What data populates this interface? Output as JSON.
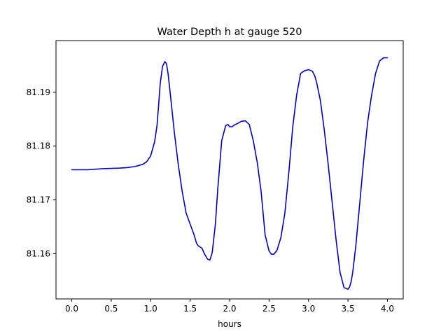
{
  "chart_data": {
    "type": "line",
    "title": "Water Depth h at gauge 520",
    "xlabel": "hours",
    "ylabel": "",
    "xlim": [
      -0.2,
      4.2
    ],
    "ylim": [
      81.1516,
      81.1996
    ],
    "xticks": [
      0.0,
      0.5,
      1.0,
      1.5,
      2.0,
      2.5,
      3.0,
      3.5,
      4.0
    ],
    "xtick_labels": [
      "0.0",
      "0.5",
      "1.0",
      "1.5",
      "2.0",
      "2.5",
      "3.0",
      "3.5",
      "4.0"
    ],
    "yticks": [
      81.16,
      81.17,
      81.18,
      81.19
    ],
    "ytick_labels": [
      "81.16",
      "81.17",
      "81.18",
      "81.19"
    ],
    "grid": false,
    "series": [
      {
        "color": "#0000cc",
        "x": [
          0.0,
          0.2,
          0.4,
          0.6,
          0.7,
          0.8,
          0.9,
          0.95,
          1.0,
          1.05,
          1.08,
          1.1,
          1.12,
          1.15,
          1.18,
          1.2,
          1.22,
          1.25,
          1.3,
          1.35,
          1.4,
          1.45,
          1.5,
          1.55,
          1.58,
          1.6,
          1.65,
          1.68,
          1.72,
          1.75,
          1.78,
          1.82,
          1.85,
          1.9,
          1.95,
          1.98,
          2.0,
          2.03,
          2.06,
          2.1,
          2.15,
          2.2,
          2.25,
          2.3,
          2.35,
          2.4,
          2.45,
          2.5,
          2.53,
          2.56,
          2.6,
          2.65,
          2.7,
          2.75,
          2.8,
          2.85,
          2.9,
          2.95,
          3.0,
          3.05,
          3.08,
          3.1,
          3.15,
          3.2,
          3.25,
          3.3,
          3.35,
          3.4,
          3.45,
          3.5,
          3.52,
          3.54,
          3.56,
          3.6,
          3.65,
          3.7,
          3.75,
          3.8,
          3.85,
          3.9,
          3.95,
          3.98,
          4.0
        ],
        "y": [
          81.1756,
          81.1756,
          81.1758,
          81.1759,
          81.176,
          81.1762,
          81.1766,
          81.1771,
          81.1782,
          81.1808,
          81.1838,
          81.1875,
          81.1915,
          81.1948,
          81.1957,
          81.1953,
          81.1935,
          81.1895,
          81.1825,
          81.1765,
          81.1715,
          81.1675,
          81.1655,
          81.1635,
          81.162,
          81.1615,
          81.161,
          81.16,
          81.159,
          81.1588,
          81.1602,
          81.1655,
          81.172,
          81.181,
          81.1838,
          81.184,
          81.1836,
          81.1836,
          81.1839,
          81.1842,
          81.1846,
          81.1847,
          81.184,
          81.181,
          81.177,
          81.1715,
          81.1635,
          81.1605,
          81.1599,
          81.1599,
          81.1606,
          81.163,
          81.1675,
          81.175,
          81.1835,
          81.1895,
          81.1935,
          81.194,
          81.1942,
          81.1939,
          81.193,
          81.192,
          81.1885,
          81.183,
          81.1765,
          81.1695,
          81.1625,
          81.1565,
          81.1537,
          81.1534,
          81.1538,
          81.1548,
          81.1565,
          81.1615,
          81.1695,
          81.1775,
          81.1845,
          81.1895,
          81.1935,
          81.1958,
          81.1964,
          81.1964,
          81.1964
        ]
      }
    ]
  }
}
